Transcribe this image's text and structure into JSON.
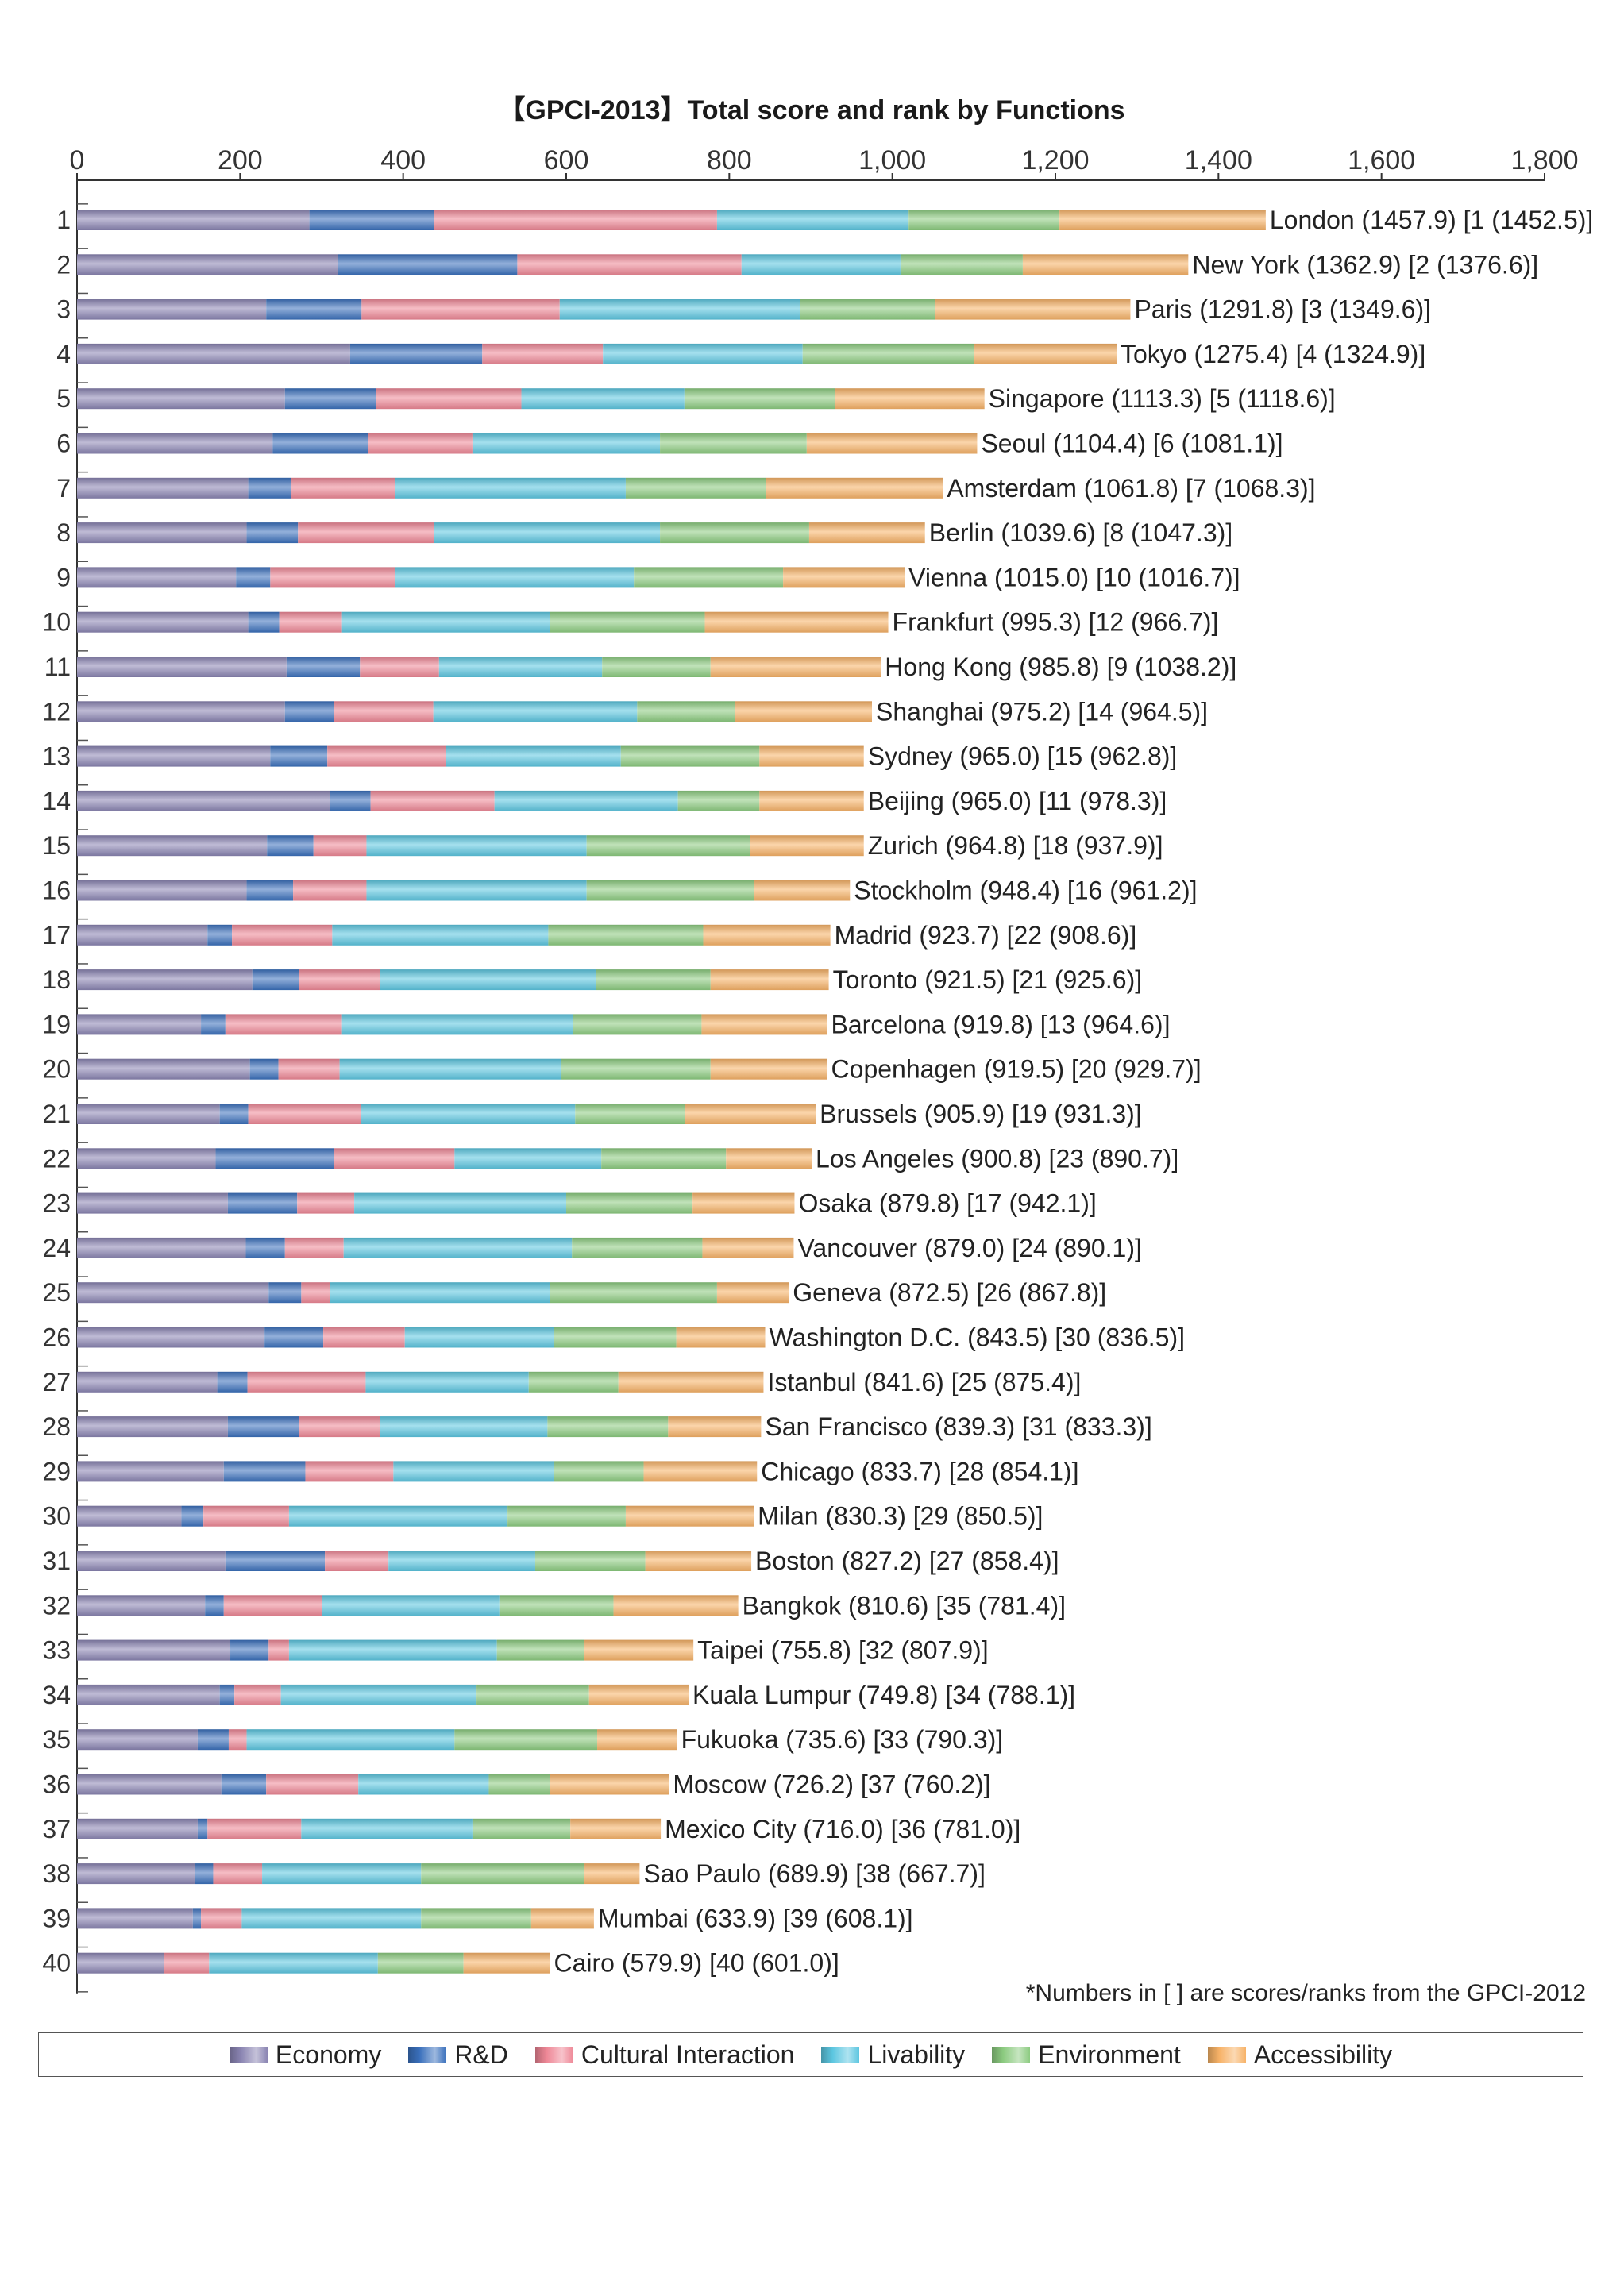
{
  "chart_data": {
    "type": "bar",
    "orientation": "horizontal",
    "stacked": true,
    "title": "【GPCI-2013】Total score and rank by Functions",
    "xlim": [
      0,
      1800
    ],
    "xticks": [
      0,
      200,
      400,
      600,
      800,
      1000,
      1200,
      1400,
      1600,
      1800
    ],
    "xtick_labels": [
      "0",
      "200",
      "400",
      "600",
      "800",
      "1,000",
      "1,200",
      "1,400",
      "1,600",
      "1,800"
    ],
    "grid": false,
    "legend_position": "bottom",
    "note": "*Numbers in [ ] are scores/ranks from the GPCI-2012",
    "series": [
      {
        "name": "Economy",
        "color": "#8a84b2"
      },
      {
        "name": "R&D",
        "color": "#3a70bc"
      },
      {
        "name": "Cultural Interaction",
        "color": "#ee8796"
      },
      {
        "name": "Livability",
        "color": "#5cc6e0"
      },
      {
        "name": "Environment",
        "color": "#8ccb80"
      },
      {
        "name": "Accessibility",
        "color": "#f7b267"
      }
    ],
    "rows": [
      {
        "rank": "1",
        "label": "London (1457.9) [1 (1452.5)]",
        "values": [
          285,
          153,
          347,
          235,
          185,
          253
        ]
      },
      {
        "rank": "2",
        "label": "New York (1362.9) [2 (1376.6)]",
        "values": [
          320,
          220,
          275,
          195,
          150,
          203
        ]
      },
      {
        "rank": "3",
        "label": "Paris (1291.8) [3 (1349.6)]",
        "values": [
          232,
          117,
          243,
          295,
          165,
          240
        ]
      },
      {
        "rank": "4",
        "label": "Tokyo (1275.4) [4 (1324.9)]",
        "values": [
          335,
          162,
          148,
          245,
          210,
          175
        ]
      },
      {
        "rank": "5",
        "label": "Singapore (1113.3) [5 (1118.6)]",
        "values": [
          255,
          112,
          178,
          200,
          185,
          183
        ]
      },
      {
        "rank": "6",
        "label": "Seoul (1104.4) [6 (1081.1)]",
        "values": [
          240,
          117,
          128,
          230,
          180,
          209
        ]
      },
      {
        "rank": "7",
        "label": "Amsterdam (1061.8) [7 (1068.3)]",
        "values": [
          210,
          52,
          128,
          283,
          172,
          217
        ]
      },
      {
        "rank": "8",
        "label": "Berlin (1039.6) [8 (1047.3)]",
        "values": [
          208,
          63,
          167,
          277,
          183,
          142
        ]
      },
      {
        "rank": "9",
        "label": "Vienna (1015.0) [10 (1016.7)]",
        "values": [
          195,
          42,
          153,
          293,
          183,
          149
        ]
      },
      {
        "rank": "10",
        "label": "Frankfurt (995.3) [12 (966.7)]",
        "values": [
          210,
          38,
          77,
          255,
          190,
          225
        ]
      },
      {
        "rank": "11",
        "label": "Hong Kong (985.8) [9 (1038.2)]",
        "values": [
          257,
          90,
          97,
          200,
          133,
          209
        ]
      },
      {
        "rank": "12",
        "label": "Shanghai (975.2) [14 (964.5)]",
        "values": [
          255,
          60,
          122,
          250,
          120,
          168
        ]
      },
      {
        "rank": "13",
        "label": "Sydney (965.0) [15 (962.8)]",
        "values": [
          237,
          70,
          145,
          215,
          170,
          128
        ]
      },
      {
        "rank": "14",
        "label": "Beijing (965.0) [11 (978.3)]",
        "values": [
          310,
          50,
          152,
          225,
          100,
          128
        ]
      },
      {
        "rank": "15",
        "label": "Zurich (964.8) [18 (937.9)]",
        "values": [
          233,
          57,
          65,
          270,
          200,
          140
        ]
      },
      {
        "rank": "16",
        "label": "Stockholm (948.4) [16 (961.2)]",
        "values": [
          208,
          57,
          90,
          270,
          205,
          118
        ]
      },
      {
        "rank": "17",
        "label": "Madrid (923.7) [22 (908.6)]",
        "values": [
          160,
          30,
          123,
          265,
          190,
          156
        ]
      },
      {
        "rank": "18",
        "label": "Toronto (921.5) [21 (925.6)]",
        "values": [
          215,
          57,
          100,
          265,
          140,
          145
        ]
      },
      {
        "rank": "19",
        "label": "Barcelona (919.8) [13 (964.6)]",
        "values": [
          152,
          30,
          143,
          283,
          158,
          154
        ]
      },
      {
        "rank": "20",
        "label": "Copenhagen (919.5) [20 (929.7)]",
        "values": [
          212,
          35,
          75,
          272,
          183,
          143
        ]
      },
      {
        "rank": "21",
        "label": "Brussels (905.9) [19 (931.3)]",
        "values": [
          175,
          35,
          138,
          263,
          135,
          160
        ]
      },
      {
        "rank": "22",
        "label": "Los Angeles (900.8) [23 (890.7)]",
        "values": [
          170,
          145,
          148,
          180,
          153,
          105
        ]
      },
      {
        "rank": "23",
        "label": "Osaka (879.8) [17 (942.1)]",
        "values": [
          185,
          85,
          70,
          260,
          155,
          125
        ]
      },
      {
        "rank": "24",
        "label": "Vancouver (879.0) [24 (890.1)]",
        "values": [
          207,
          48,
          72,
          280,
          160,
          112
        ]
      },
      {
        "rank": "25",
        "label": "Geneva (872.5) [26 (867.8)]",
        "values": [
          235,
          40,
          35,
          270,
          205,
          88
        ]
      },
      {
        "rank": "26",
        "label": "Washington D.C. (843.5) [30 (836.5)]",
        "values": [
          230,
          72,
          100,
          183,
          150,
          109
        ]
      },
      {
        "rank": "27",
        "label": "Istanbul (841.6) [25 (875.4)]",
        "values": [
          172,
          37,
          145,
          200,
          110,
          178
        ]
      },
      {
        "rank": "28",
        "label": "San Francisco (839.3) [31 (833.3)]",
        "values": [
          185,
          87,
          100,
          205,
          148,
          114
        ]
      },
      {
        "rank": "29",
        "label": "Chicago (833.7) [28 (854.1)]",
        "values": [
          180,
          100,
          108,
          197,
          110,
          139
        ]
      },
      {
        "rank": "30",
        "label": "Milan (830.3) [29 (850.5)]",
        "values": [
          128,
          27,
          105,
          268,
          145,
          157
        ]
      },
      {
        "rank": "31",
        "label": "Boston (827.2) [27 (858.4)]",
        "values": [
          182,
          122,
          78,
          180,
          135,
          130
        ]
      },
      {
        "rank": "32",
        "label": "Bangkok (810.6) [35 (781.4)]",
        "values": [
          157,
          23,
          120,
          218,
          140,
          153
        ]
      },
      {
        "rank": "33",
        "label": "Taipei (755.8) [32 (807.9)]",
        "values": [
          188,
          47,
          25,
          255,
          107,
          134
        ]
      },
      {
        "rank": "34",
        "label": "Kuala Lumpur (749.8) [34 (788.1)]",
        "values": [
          175,
          18,
          57,
          240,
          138,
          122
        ]
      },
      {
        "rank": "35",
        "label": "Fukuoka (735.6) [33 (790.3)]",
        "values": [
          148,
          38,
          22,
          255,
          175,
          98
        ]
      },
      {
        "rank": "36",
        "label": "Moscow (726.2) [37 (760.2)]",
        "values": [
          177,
          55,
          113,
          160,
          75,
          146
        ]
      },
      {
        "rank": "37",
        "label": "Mexico City (716.0) [36 (781.0)]",
        "values": [
          148,
          12,
          115,
          210,
          120,
          111
        ]
      },
      {
        "rank": "38",
        "label": "Sao Paulo (689.9) [38 (667.7)]",
        "values": [
          145,
          22,
          60,
          195,
          200,
          68
        ]
      },
      {
        "rank": "39",
        "label": "Mumbai (633.9) [39 (608.1)]",
        "values": [
          142,
          10,
          50,
          220,
          135,
          77
        ]
      },
      {
        "rank": "40",
        "label": "Cairo (579.9) [40 (601.0)]",
        "values": [
          107,
          0,
          55,
          207,
          105,
          106
        ]
      }
    ]
  }
}
